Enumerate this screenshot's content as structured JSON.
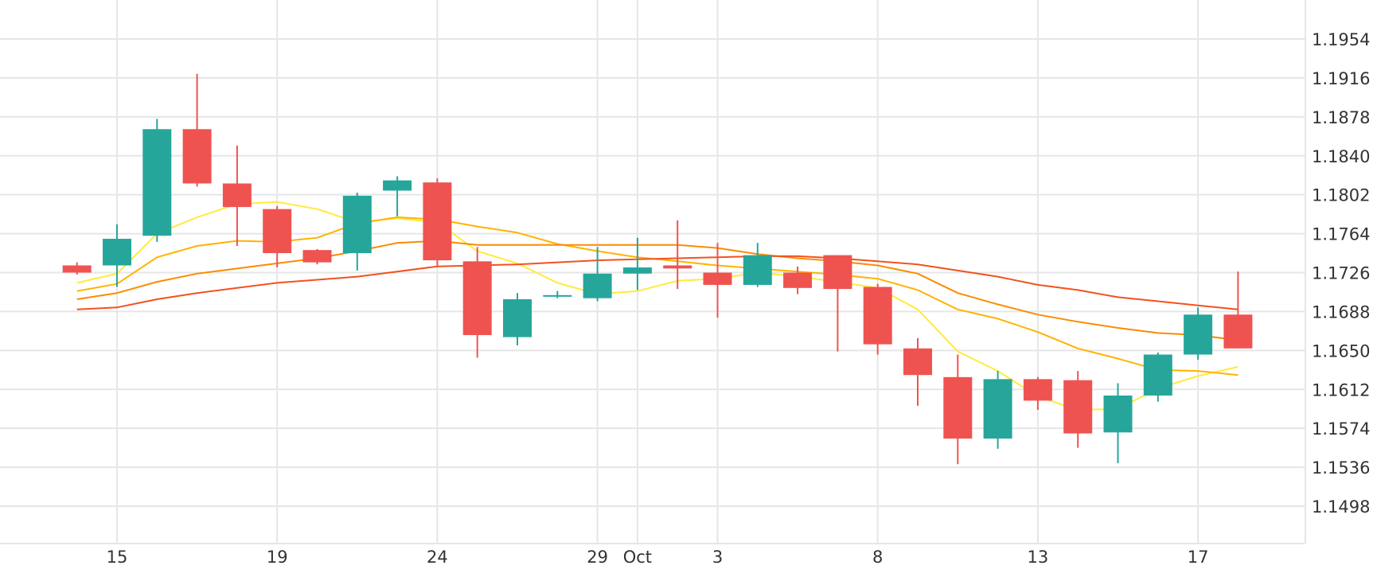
{
  "chart_data": {
    "type": "candlestick",
    "colors": {
      "up": "#26a69a",
      "down": "#ef5350",
      "ma1": "#ffeb3b",
      "ma2": "#ffb300",
      "ma3": "#fb8c00",
      "ma4": "#f4511e",
      "grid": "#e6e6e6",
      "text": "#333333"
    },
    "y_ticks": [
      "1.1954",
      "1.1916",
      "1.1878",
      "1.1840",
      "1.1802",
      "1.1764",
      "1.1726",
      "1.1688",
      "1.1650",
      "1.1612",
      "1.1574",
      "1.1536",
      "1.1498"
    ],
    "ylim": [
      1.146,
      1.1988
    ],
    "x_ticks": [
      {
        "label": "15",
        "x": 2
      },
      {
        "label": "19",
        "x": 6
      },
      {
        "label": "24",
        "x": 10
      },
      {
        "label": "29",
        "x": 14
      },
      {
        "label": "Oct",
        "x": 15
      },
      {
        "label": "3",
        "x": 17
      },
      {
        "label": "8",
        "x": 21
      },
      {
        "label": "13",
        "x": 25
      },
      {
        "label": "17",
        "x": 29
      }
    ],
    "grid": true,
    "candles": [
      {
        "x": 1,
        "o": 1.1733,
        "h": 1.1736,
        "l": 1.1724,
        "c": 1.1726
      },
      {
        "x": 2,
        "o": 1.1733,
        "h": 1.1773,
        "l": 1.1712,
        "c": 1.1759
      },
      {
        "x": 3,
        "o": 1.1762,
        "h": 1.1876,
        "l": 1.1756,
        "c": 1.1866
      },
      {
        "x": 4,
        "o": 1.1866,
        "h": 1.192,
        "l": 1.181,
        "c": 1.1813
      },
      {
        "x": 5,
        "o": 1.1813,
        "h": 1.185,
        "l": 1.1752,
        "c": 1.179
      },
      {
        "x": 6,
        "o": 1.1788,
        "h": 1.1791,
        "l": 1.1731,
        "c": 1.1745
      },
      {
        "x": 7,
        "o": 1.1748,
        "h": 1.1749,
        "l": 1.1734,
        "c": 1.1736
      },
      {
        "x": 8,
        "o": 1.1745,
        "h": 1.1804,
        "l": 1.1728,
        "c": 1.1801
      },
      {
        "x": 9,
        "o": 1.1806,
        "h": 1.182,
        "l": 1.1781,
        "c": 1.1816
      },
      {
        "x": 10,
        "o": 1.1814,
        "h": 1.1818,
        "l": 1.1732,
        "c": 1.1738
      },
      {
        "x": 11,
        "o": 1.1737,
        "h": 1.1751,
        "l": 1.1643,
        "c": 1.1665
      },
      {
        "x": 12,
        "o": 1.1663,
        "h": 1.1706,
        "l": 1.1655,
        "c": 1.17
      },
      {
        "x": 13,
        "o": 1.1704,
        "h": 1.1708,
        "l": 1.1701,
        "c": 1.1704
      },
      {
        "x": 14,
        "o": 1.1701,
        "h": 1.1751,
        "l": 1.1698,
        "c": 1.1725
      },
      {
        "x": 15,
        "o": 1.1725,
        "h": 1.176,
        "l": 1.1709,
        "c": 1.1731
      },
      {
        "x": 16,
        "o": 1.1733,
        "h": 1.1777,
        "l": 1.171,
        "c": 1.173
      },
      {
        "x": 17,
        "o": 1.1726,
        "h": 1.1755,
        "l": 1.1682,
        "c": 1.1714
      },
      {
        "x": 18,
        "o": 1.1714,
        "h": 1.1755,
        "l": 1.1712,
        "c": 1.1743
      },
      {
        "x": 19,
        "o": 1.1726,
        "h": 1.1732,
        "l": 1.1705,
        "c": 1.1711
      },
      {
        "x": 20,
        "o": 1.1743,
        "h": 1.1743,
        "l": 1.1649,
        "c": 1.171
      },
      {
        "x": 21,
        "o": 1.1712,
        "h": 1.1715,
        "l": 1.1646,
        "c": 1.1656
      },
      {
        "x": 22,
        "o": 1.1652,
        "h": 1.1662,
        "l": 1.1596,
        "c": 1.1626
      },
      {
        "x": 23,
        "o": 1.1624,
        "h": 1.1646,
        "l": 1.1539,
        "c": 1.1564
      },
      {
        "x": 24,
        "o": 1.1564,
        "h": 1.163,
        "l": 1.1554,
        "c": 1.1622
      },
      {
        "x": 25,
        "o": 1.1622,
        "h": 1.1624,
        "l": 1.1592,
        "c": 1.1601
      },
      {
        "x": 26,
        "o": 1.1621,
        "h": 1.163,
        "l": 1.1555,
        "c": 1.1569
      },
      {
        "x": 27,
        "o": 1.157,
        "h": 1.1618,
        "l": 1.154,
        "c": 1.1606
      },
      {
        "x": 28,
        "o": 1.1606,
        "h": 1.1648,
        "l": 1.16,
        "c": 1.1646
      },
      {
        "x": 29,
        "o": 1.1646,
        "h": 1.1692,
        "l": 1.1641,
        "c": 1.1685
      },
      {
        "x": 30,
        "o": 1.1685,
        "h": 1.1727,
        "l": 1.1652,
        "c": 1.1652
      }
    ],
    "moving_averages": [
      {
        "color_key": "ma1",
        "points": [
          [
            1,
            1.1716
          ],
          [
            2,
            1.1725
          ],
          [
            3,
            1.1764
          ],
          [
            4,
            1.178
          ],
          [
            5,
            1.1793
          ],
          [
            6,
            1.1795
          ],
          [
            7,
            1.1788
          ],
          [
            8,
            1.1775
          ],
          [
            9,
            1.1779
          ],
          [
            10,
            1.1775
          ],
          [
            11,
            1.1747
          ],
          [
            12,
            1.1735
          ],
          [
            13,
            1.1716
          ],
          [
            14,
            1.1705
          ],
          [
            15,
            1.1708
          ],
          [
            16,
            1.1718
          ],
          [
            17,
            1.172
          ],
          [
            18,
            1.1726
          ],
          [
            19,
            1.1722
          ],
          [
            20,
            1.1717
          ],
          [
            21,
            1.1711
          ],
          [
            22,
            1.169
          ],
          [
            23,
            1.1649
          ],
          [
            24,
            1.163
          ],
          [
            25,
            1.1605
          ],
          [
            26,
            1.1592
          ],
          [
            27,
            1.1593
          ],
          [
            28,
            1.1613
          ],
          [
            29,
            1.1625
          ],
          [
            30,
            1.1634
          ]
        ]
      },
      {
        "color_key": "ma2",
        "points": [
          [
            1,
            1.1708
          ],
          [
            2,
            1.1715
          ],
          [
            3,
            1.1741
          ],
          [
            4,
            1.1752
          ],
          [
            5,
            1.1757
          ],
          [
            6,
            1.1756
          ],
          [
            7,
            1.176
          ],
          [
            8,
            1.1774
          ],
          [
            9,
            1.178
          ],
          [
            10,
            1.1778
          ],
          [
            11,
            1.1771
          ],
          [
            12,
            1.1765
          ],
          [
            13,
            1.1754
          ],
          [
            14,
            1.1747
          ],
          [
            15,
            1.1741
          ],
          [
            16,
            1.1737
          ],
          [
            17,
            1.1733
          ],
          [
            18,
            1.173
          ],
          [
            19,
            1.1727
          ],
          [
            20,
            1.1724
          ],
          [
            21,
            1.172
          ],
          [
            22,
            1.1709
          ],
          [
            23,
            1.169
          ],
          [
            24,
            1.1681
          ],
          [
            25,
            1.1668
          ],
          [
            26,
            1.1652
          ],
          [
            27,
            1.1642
          ],
          [
            28,
            1.1631
          ],
          [
            29,
            1.163
          ],
          [
            30,
            1.1626
          ]
        ]
      },
      {
        "color_key": "ma3",
        "points": [
          [
            1,
            1.17
          ],
          [
            2,
            1.1706
          ],
          [
            3,
            1.1717
          ],
          [
            4,
            1.1725
          ],
          [
            5,
            1.173
          ],
          [
            6,
            1.1735
          ],
          [
            7,
            1.174
          ],
          [
            8,
            1.1747
          ],
          [
            9,
            1.1755
          ],
          [
            10,
            1.1757
          ],
          [
            11,
            1.1753
          ],
          [
            12,
            1.1753
          ],
          [
            13,
            1.1753
          ],
          [
            14,
            1.1753
          ],
          [
            15,
            1.1753
          ],
          [
            16,
            1.1753
          ],
          [
            17,
            1.175
          ],
          [
            18,
            1.1744
          ],
          [
            19,
            1.174
          ],
          [
            20,
            1.1737
          ],
          [
            21,
            1.1733
          ],
          [
            22,
            1.1725
          ],
          [
            23,
            1.1706
          ],
          [
            24,
            1.1695
          ],
          [
            25,
            1.1685
          ],
          [
            26,
            1.1678
          ],
          [
            27,
            1.1672
          ],
          [
            28,
            1.1667
          ],
          [
            29,
            1.1665
          ],
          [
            30,
            1.166
          ]
        ]
      },
      {
        "color_key": "ma4",
        "points": [
          [
            1,
            1.169
          ],
          [
            2,
            1.1692
          ],
          [
            3,
            1.17
          ],
          [
            4,
            1.1706
          ],
          [
            5,
            1.1711
          ],
          [
            6,
            1.1716
          ],
          [
            7,
            1.1719
          ],
          [
            8,
            1.1722
          ],
          [
            9,
            1.1727
          ],
          [
            10,
            1.1732
          ],
          [
            11,
            1.1733
          ],
          [
            12,
            1.1734
          ],
          [
            13,
            1.1736
          ],
          [
            14,
            1.1738
          ],
          [
            15,
            1.1739
          ],
          [
            16,
            1.174
          ],
          [
            17,
            1.1741
          ],
          [
            18,
            1.1742
          ],
          [
            19,
            1.1742
          ],
          [
            20,
            1.174
          ],
          [
            21,
            1.1737
          ],
          [
            22,
            1.1734
          ],
          [
            23,
            1.1728
          ],
          [
            24,
            1.1722
          ],
          [
            25,
            1.1714
          ],
          [
            26,
            1.1709
          ],
          [
            27,
            1.1702
          ],
          [
            28,
            1.1698
          ],
          [
            29,
            1.1694
          ],
          [
            30,
            1.169
          ]
        ]
      }
    ]
  }
}
